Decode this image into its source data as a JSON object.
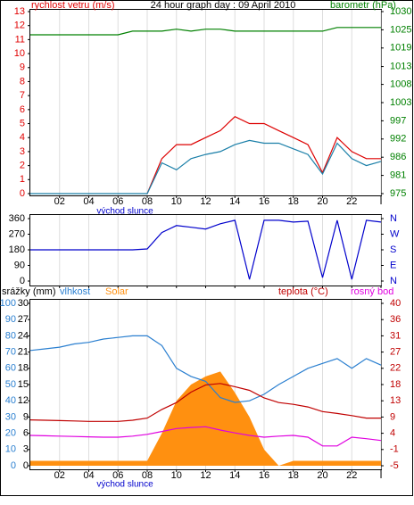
{
  "chart_data": [
    {
      "type": "line",
      "title": "24 hour graph day : 09 April 2010",
      "ylabel": "rychlost vetru (m/s)",
      "y2label": "barometr (hPa)",
      "annotation": "východ slunce",
      "x": [
        0,
        1,
        2,
        3,
        4,
        5,
        6,
        7,
        8,
        9,
        10,
        11,
        12,
        13,
        14,
        15,
        16,
        17,
        18,
        19,
        20,
        21,
        22,
        23,
        24
      ],
      "xlim": [
        0,
        24
      ],
      "xticks": [
        {
          "value": 2,
          "label": "02"
        },
        {
          "value": 4,
          "label": "04"
        },
        {
          "value": 6,
          "label": "06"
        },
        {
          "value": 8,
          "label": "08"
        },
        {
          "value": 10,
          "label": "10"
        },
        {
          "value": 12,
          "label": "12"
        },
        {
          "value": 14,
          "label": "14"
        },
        {
          "value": 16,
          "label": "16"
        },
        {
          "value": 18,
          "label": "18"
        },
        {
          "value": 20,
          "label": "20"
        },
        {
          "value": 22,
          "label": "22"
        },
        {
          "value": 24,
          "label": "I"
        }
      ],
      "ylim": [
        0,
        13
      ],
      "yticks": [
        0,
        1,
        2,
        3,
        4,
        5,
        6,
        7,
        8,
        9,
        10,
        11,
        12,
        13
      ],
      "y2lim": [
        975,
        1030
      ],
      "y2ticks": [
        975,
        {
          "value": 980.5,
          "label": "981"
        },
        986,
        {
          "value": 991.5,
          "label": "992"
        },
        997,
        {
          "value": 1002.5,
          "label": "1003"
        },
        1008,
        {
          "value": 1013.4,
          "label": "1013"
        },
        1019,
        {
          "value": 1024.5,
          "label": "1025"
        },
        1030
      ],
      "y_color": "#e00000",
      "y2_color": "#008000",
      "grid": true,
      "series": [
        {
          "color": "#dd0000",
          "values": [
            null,
            null,
            null,
            null,
            null,
            null,
            null,
            null,
            0,
            2.5,
            3.5,
            3.5,
            4,
            4.5,
            5.5,
            5,
            5,
            4.5,
            4,
            3.5,
            1.5,
            4,
            3,
            2.5,
            2.5
          ]
        },
        {
          "color": "#1a7fa8",
          "values": [
            0,
            0,
            0,
            0,
            0,
            0,
            0,
            0,
            0,
            2.2,
            1.7,
            2.5,
            2.8,
            3,
            3.5,
            3.8,
            3.6,
            3.6,
            3.2,
            2.8,
            1.4,
            3.6,
            2.5,
            2,
            2.3
          ]
        },
        {
          "color": "#008000",
          "axis": "y2",
          "values": [
            1023,
            1023,
            1023,
            1023,
            1023,
            1023,
            1023,
            1024.1,
            1024.1,
            1024.1,
            1024.7,
            1024.1,
            1024.7,
            1024.7,
            1024.1,
            1024.1,
            1024.1,
            1024.1,
            1024.1,
            1024.1,
            1024.1,
            1025.2,
            1025.2,
            1025.2,
            1025.2
          ]
        }
      ]
    },
    {
      "type": "line",
      "x": [
        0,
        1,
        2,
        3,
        4,
        5,
        6,
        7,
        8,
        9,
        10,
        11,
        12,
        13,
        14,
        15,
        16,
        17,
        18,
        19,
        20,
        21,
        22,
        23,
        24
      ],
      "xlim": [
        0,
        24
      ],
      "xticks": [
        {
          "value": 2,
          "label": "02"
        },
        {
          "value": 4,
          "label": "04"
        },
        {
          "value": 6,
          "label": "06"
        },
        {
          "value": 8,
          "label": "08"
        },
        {
          "value": 10,
          "label": "10"
        },
        {
          "value": 12,
          "label": "12"
        },
        {
          "value": 14,
          "label": "14"
        },
        {
          "value": 16,
          "label": "16"
        },
        {
          "value": 18,
          "label": "18"
        },
        {
          "value": 20,
          "label": "20"
        },
        {
          "value": 22,
          "label": "22"
        },
        {
          "value": 24,
          "label": "I"
        }
      ],
      "ylim": [
        0,
        360
      ],
      "yticks": [
        0,
        90,
        180,
        270,
        360
      ],
      "y2lim": [
        0,
        360
      ],
      "y2ticks": [
        {
          "value": 360,
          "label": "N"
        },
        {
          "value": 270,
          "label": "W"
        },
        {
          "value": 180,
          "label": "S"
        },
        {
          "value": 90,
          "label": "E"
        },
        {
          "value": 0,
          "label": "N"
        }
      ],
      "y_color": "#000000",
      "y2_color": "#0000cc",
      "grid": true,
      "series": [
        {
          "color": "#0000cc",
          "values": [
            180,
            180,
            180,
            180,
            180,
            180,
            180,
            180,
            185,
            280,
            320,
            310,
            300,
            330,
            350,
            10,
            350,
            350,
            340,
            345,
            20,
            350,
            10,
            350,
            340
          ]
        }
      ]
    },
    {
      "type": "line",
      "precip_label": "srážky (mm)",
      "annotation": "východ slunce",
      "x": [
        0,
        1,
        2,
        3,
        4,
        5,
        6,
        7,
        8,
        9,
        10,
        11,
        12,
        13,
        14,
        15,
        16,
        17,
        18,
        19,
        20,
        21,
        22,
        23,
        24
      ],
      "xlim": [
        0,
        24
      ],
      "xticks": [
        {
          "value": 2,
          "label": "02"
        },
        {
          "value": 4,
          "label": "04"
        },
        {
          "value": 6,
          "label": "06"
        },
        {
          "value": 8,
          "label": "08"
        },
        {
          "value": 10,
          "label": "10"
        },
        {
          "value": 12,
          "label": "12"
        },
        {
          "value": 14,
          "label": "14"
        },
        {
          "value": 16,
          "label": "16"
        },
        {
          "value": 18,
          "label": "18"
        },
        {
          "value": 20,
          "label": "20"
        },
        {
          "value": 22,
          "label": "22"
        },
        {
          "value": 24,
          "label": "I"
        }
      ],
      "ylim": [
        0,
        100
      ],
      "yticks": [
        0,
        10,
        20,
        30,
        40,
        50,
        60,
        70,
        80,
        90,
        100
      ],
      "precip_lim": [
        0,
        30
      ],
      "precip_ticks": [
        0,
        3,
        6,
        9,
        12,
        15,
        18,
        21,
        24,
        27,
        30
      ],
      "y2lim": [
        -5,
        40
      ],
      "y2ticks": [
        -5,
        {
          "value": -0.5,
          "label": "-1"
        },
        4,
        {
          "value": 8.5,
          "label": "9"
        },
        13,
        {
          "value": 17.5,
          "label": "18"
        },
        22,
        {
          "value": 26.5,
          "label": "27"
        },
        31,
        {
          "value": 35.5,
          "label": "36"
        },
        40
      ],
      "y_color": "#2a7fd0",
      "precip_color": "#000000",
      "y2_color": "#c00000",
      "grid": true,
      "series": [
        {
          "name": "Solar",
          "color": "#ff9010",
          "style": "area",
          "values": [
            3,
            3,
            3,
            3,
            3,
            3,
            3,
            3,
            3,
            20,
            40,
            50,
            55,
            58,
            45,
            30,
            10,
            0,
            3,
            3,
            3,
            3,
            3,
            3,
            3
          ]
        },
        {
          "name": "vlhkost",
          "color": "#2a7fd0",
          "values": [
            71,
            72,
            73,
            75,
            76,
            78,
            79,
            80,
            80,
            74,
            60,
            55,
            52,
            42,
            39,
            40,
            44,
            50,
            55,
            60,
            63,
            66,
            60,
            66,
            62
          ]
        },
        {
          "name": "teplota (°C)",
          "color": "#c00000",
          "axis": "y2",
          "values": [
            7.7,
            7.6,
            7.5,
            7.4,
            7.3,
            7.3,
            7.3,
            7.6,
            8.2,
            10.6,
            12.5,
            15.4,
            17.4,
            17.8,
            16.9,
            15.9,
            13.8,
            12.5,
            12,
            11.3,
            10,
            9.5,
            8.9,
            8.2,
            8.2
          ]
        },
        {
          "name": "rosný bod",
          "color": "#e000e0",
          "axis": "y2",
          "values": [
            3.4,
            3.3,
            3.2,
            3.1,
            3,
            2.9,
            2.9,
            3.2,
            3.7,
            4.5,
            5.3,
            5.6,
            5.8,
            4.9,
            4.1,
            3.4,
            2.9,
            3.2,
            3.4,
            2.9,
            0.5,
            0.5,
            2.9,
            2.5,
            2
          ]
        }
      ]
    }
  ]
}
